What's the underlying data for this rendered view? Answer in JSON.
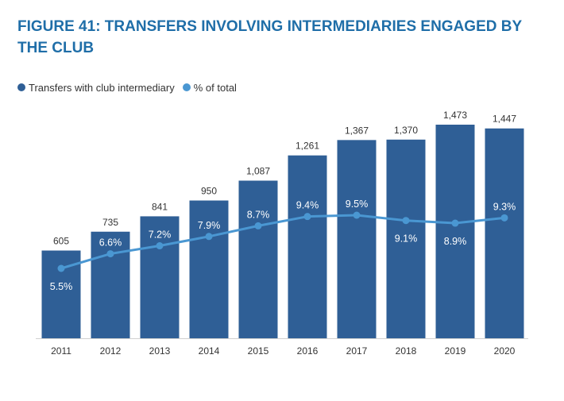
{
  "colors": {
    "title": "#1f6ea8",
    "bar": "#2f5f96",
    "line": "#4a97d2",
    "text": "#333333"
  },
  "chart_data": {
    "type": "bar",
    "title": "FIGURE 41: TRANSFERS INVOLVING INTERMEDIARIES ENGAGED BY THE CLUB",
    "legend_placement": "top-left",
    "grid": false,
    "categories": [
      "2011",
      "2012",
      "2013",
      "2014",
      "2015",
      "2016",
      "2017",
      "2018",
      "2019",
      "2020"
    ],
    "series": [
      {
        "name": "Transfers with club intermediary",
        "type": "bar",
        "values": [
          605,
          735,
          841,
          950,
          1087,
          1261,
          1367,
          1370,
          1473,
          1447
        ],
        "labels": [
          "605",
          "735",
          "841",
          "950",
          "1,087",
          "1,261",
          "1,367",
          "1,370",
          "1,473",
          "1,447"
        ]
      },
      {
        "name": "% of total",
        "type": "line",
        "values": [
          5.5,
          6.6,
          7.2,
          7.9,
          8.7,
          9.4,
          9.5,
          9.1,
          8.9,
          9.3
        ],
        "labels": [
          "5.5%",
          "6.6%",
          "7.2%",
          "7.9%",
          "8.7%",
          "9.4%",
          "9.5%",
          "9.1%",
          "8.9%",
          "9.3%"
        ]
      }
    ],
    "ylim_bar": [
      0,
      1473
    ],
    "ylim_line": [
      0,
      11
    ]
  }
}
